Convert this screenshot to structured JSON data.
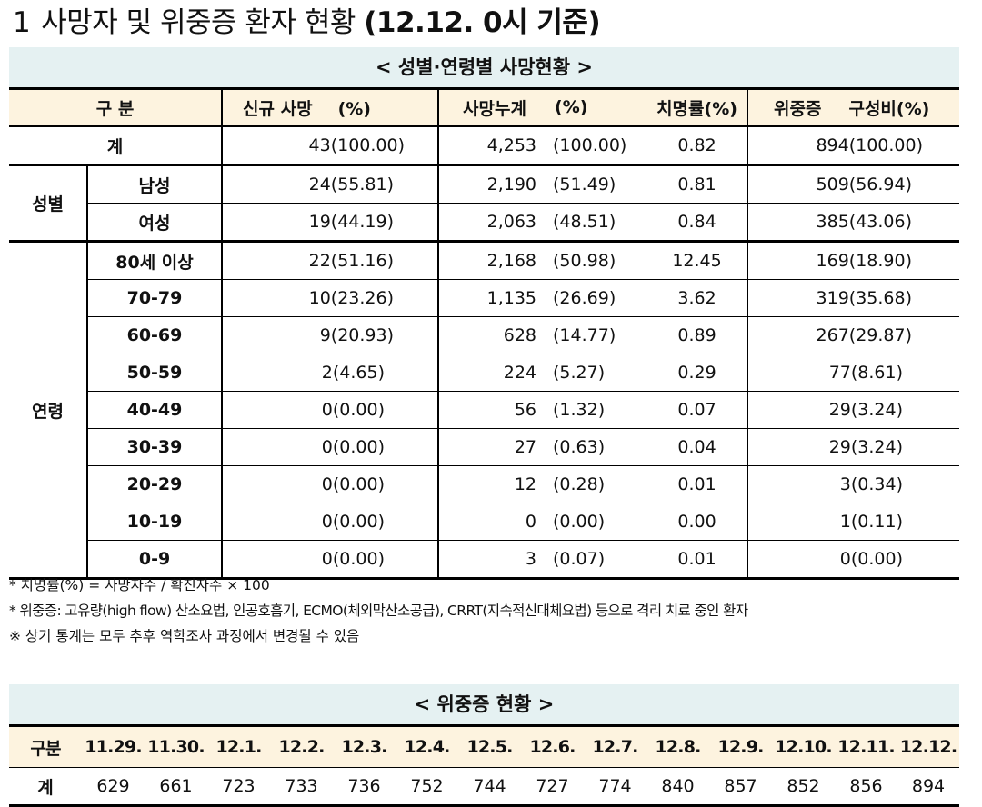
{
  "title": {
    "number": "1",
    "text": "사망자 및 위중증 환자 현황",
    "date": "(12.12. 0시 기준)"
  },
  "table1": {
    "caption": "< 성별·연령별 사망현황 >",
    "headers": {
      "category": "구 분",
      "new_deaths": "신규 사망",
      "new_pct": "(%)",
      "cum_deaths": "사망누계",
      "cum_pct": "(%)",
      "fatality": "치명률(%)",
      "severe": "위중증",
      "severe_ratio": "구성비(%)"
    },
    "total": {
      "label": "계",
      "new": "43(100.00)",
      "cum": "4,253",
      "cum_pct": "(100.00)",
      "fatality": "0.82",
      "severe": "894(100.00)"
    },
    "sex": {
      "group": "성별",
      "rows": [
        {
          "label": "남성",
          "new": "24(55.81)",
          "cum": "2,190",
          "cum_pct": "(51.49)",
          "fatality": "0.81",
          "severe": "509(56.94)"
        },
        {
          "label": "여성",
          "new": "19(44.19)",
          "cum": "2,063",
          "cum_pct": "(48.51)",
          "fatality": "0.84",
          "severe": "385(43.06)"
        }
      ]
    },
    "age": {
      "group": "연령",
      "rows": [
        {
          "label": "80세 이상",
          "new": "22(51.16)",
          "cum": "2,168",
          "cum_pct": "(50.98)",
          "fatality": "12.45",
          "severe": "169(18.90)"
        },
        {
          "label": "70-79",
          "new": "10(23.26)",
          "cum": "1,135",
          "cum_pct": "(26.69)",
          "fatality": "3.62",
          "severe": "319(35.68)"
        },
        {
          "label": "60-69",
          "new": "9(20.93)",
          "cum": "628",
          "cum_pct": "(14.77)",
          "fatality": "0.89",
          "severe": "267(29.87)"
        },
        {
          "label": "50-59",
          "new": "2(4.65)",
          "cum": "224",
          "cum_pct": "(5.27)",
          "fatality": "0.29",
          "severe": "77(8.61)"
        },
        {
          "label": "40-49",
          "new": "0(0.00)",
          "cum": "56",
          "cum_pct": "(1.32)",
          "fatality": "0.07",
          "severe": "29(3.24)"
        },
        {
          "label": "30-39",
          "new": "0(0.00)",
          "cum": "27",
          "cum_pct": "(0.63)",
          "fatality": "0.04",
          "severe": "29(3.24)"
        },
        {
          "label": "20-29",
          "new": "0(0.00)",
          "cum": "12",
          "cum_pct": "(0.28)",
          "fatality": "0.01",
          "severe": "3(0.34)"
        },
        {
          "label": "10-19",
          "new": "0(0.00)",
          "cum": "0",
          "cum_pct": "(0.00)",
          "fatality": "0.00",
          "severe": "1(0.11)"
        },
        {
          "label": "0-9",
          "new": "0(0.00)",
          "cum": "3",
          "cum_pct": "(0.07)",
          "fatality": "0.01",
          "severe": "0(0.00)"
        }
      ]
    }
  },
  "notes": [
    "* 치명률(%) = 사망자수 / 확진자수 × 100",
    "* 위중증: 고유량(high flow) 산소요법, 인공호흡기, ECMO(체외막산소공급), CRRT(지속적신대체요법) 등으로 격리 치료 중인 환자",
    "※ 상기 통계는 모두 추후 역학조사 과정에서 변경될 수 있음"
  ],
  "table2": {
    "caption": "< 위중증 현황 >",
    "header_label": "구분",
    "dates": [
      "11.29.",
      "11.30.",
      "12.1.",
      "12.2.",
      "12.3.",
      "12.4.",
      "12.5.",
      "12.6.",
      "12.7.",
      "12.8.",
      "12.9.",
      "12.10.",
      "12.11.",
      "12.12."
    ],
    "row_label": "계",
    "values": [
      "629",
      "661",
      "723",
      "733",
      "736",
      "752",
      "744",
      "727",
      "774",
      "840",
      "857",
      "852",
      "856",
      "894"
    ]
  }
}
